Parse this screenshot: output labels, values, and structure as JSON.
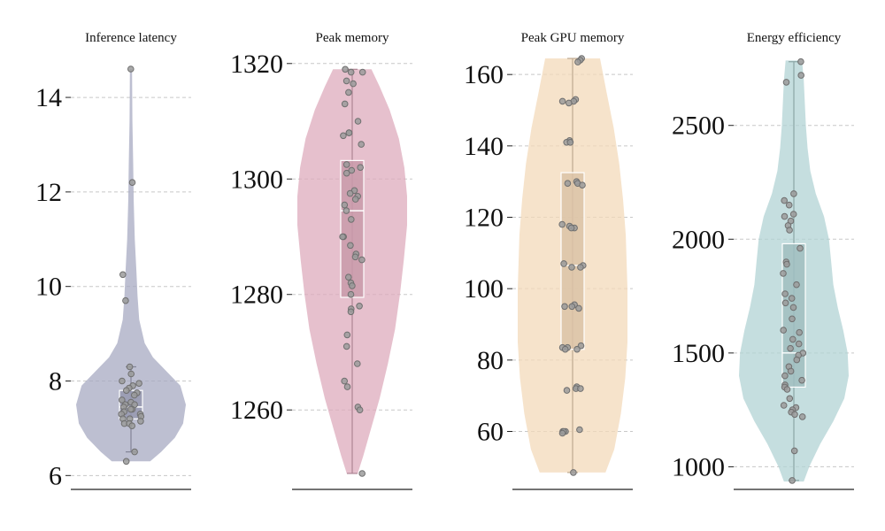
{
  "chart_data": [
    {
      "type": "violin",
      "title": "Inference latency",
      "ylim": [
        5.8,
        14.9
      ],
      "yticks": [
        6,
        8,
        10,
        12,
        14
      ],
      "color": "#a7a9c2",
      "box": {
        "min": 6.5,
        "q1": 7.2,
        "median": 7.45,
        "q3": 7.8,
        "max": 8.3
      },
      "violin_range": [
        6.3,
        14.6
      ],
      "density": [
        [
          6.3,
          0.35
        ],
        [
          6.5,
          0.55
        ],
        [
          6.8,
          0.8
        ],
        [
          7.1,
          0.95
        ],
        [
          7.5,
          1.0
        ],
        [
          7.9,
          0.9
        ],
        [
          8.2,
          0.65
        ],
        [
          8.5,
          0.4
        ],
        [
          8.8,
          0.25
        ],
        [
          9.3,
          0.15
        ],
        [
          9.8,
          0.12
        ],
        [
          10.3,
          0.1
        ],
        [
          11.0,
          0.07
        ],
        [
          11.8,
          0.05
        ],
        [
          12.6,
          0.04
        ],
        [
          13.5,
          0.025
        ],
        [
          14.6,
          0.02
        ]
      ],
      "points": [
        14.6,
        12.2,
        10.25,
        9.7,
        8.3,
        8.15,
        8.0,
        7.95,
        7.9,
        7.85,
        7.8,
        7.75,
        7.7,
        7.6,
        7.55,
        7.5,
        7.5,
        7.45,
        7.4,
        7.4,
        7.35,
        7.3,
        7.3,
        7.25,
        7.2,
        7.2,
        7.15,
        7.1,
        7.1,
        7.05,
        6.5,
        6.3
      ]
    },
    {
      "type": "violin",
      "title": "Peak memory",
      "ylim": [
        1247,
        1321.5
      ],
      "yticks": [
        1260,
        1280,
        1300,
        1320
      ],
      "color": "#deabbc",
      "box": {
        "min": 1249,
        "q1": 1279.5,
        "median": 1294.5,
        "q3": 1303.2,
        "max": 1319
      },
      "violin_range": [
        1249,
        1319
      ],
      "density": [
        [
          1249,
          0.1
        ],
        [
          1252,
          0.2
        ],
        [
          1257,
          0.35
        ],
        [
          1262,
          0.5
        ],
        [
          1268,
          0.65
        ],
        [
          1274,
          0.78
        ],
        [
          1280,
          0.87
        ],
        [
          1286,
          0.94
        ],
        [
          1292,
          1.0
        ],
        [
          1297,
          1.0
        ],
        [
          1302,
          0.95
        ],
        [
          1307,
          0.85
        ],
        [
          1312,
          0.68
        ],
        [
          1316,
          0.5
        ],
        [
          1319,
          0.35
        ]
      ],
      "points": [
        1319,
        1318.5,
        1318.5,
        1317,
        1316.5,
        1315,
        1313,
        1310,
        1308,
        1308,
        1307.5,
        1306,
        1302.5,
        1302,
        1301.5,
        1301,
        1298,
        1297.5,
        1297,
        1296.5,
        1295.5,
        1294.5,
        1293,
        1290,
        1290,
        1288.5,
        1287,
        1286.5,
        1286,
        1283,
        1282,
        1281.5,
        1280,
        1278,
        1277.5,
        1277,
        1273,
        1271,
        1268,
        1265,
        1264,
        1260.5,
        1260,
        1249
      ]
    },
    {
      "type": "violin",
      "title": "Peak GPU memory",
      "ylim": [
        45,
        165.5
      ],
      "yticks": [
        60,
        80,
        100,
        120,
        140,
        160
      ],
      "color": "#f3d9b9",
      "box": {
        "min": 48.5,
        "q1": 83,
        "median": 106.5,
        "q3": 132.5,
        "max": 164.5
      },
      "violin_range": [
        48.5,
        164.5
      ],
      "density": [
        [
          48.5,
          0.6
        ],
        [
          55,
          0.76
        ],
        [
          65,
          0.88
        ],
        [
          75,
          0.96
        ],
        [
          85,
          1.0
        ],
        [
          100,
          1.0
        ],
        [
          115,
          0.97
        ],
        [
          125,
          0.92
        ],
        [
          135,
          0.85
        ],
        [
          145,
          0.75
        ],
        [
          155,
          0.62
        ],
        [
          164.5,
          0.5
        ]
      ],
      "points": [
        164.5,
        164,
        163.5,
        153,
        152.5,
        152.5,
        152,
        141.5,
        141,
        141,
        130,
        129.5,
        129.5,
        129,
        118,
        117.5,
        117,
        117,
        107,
        106.5,
        106,
        106,
        95.5,
        95,
        95,
        94.5,
        84,
        83.5,
        83.5,
        83,
        83,
        72.5,
        72,
        72,
        71.5,
        60.5,
        60,
        60,
        60,
        59.5,
        48.5
      ]
    },
    {
      "type": "violin",
      "title": "Energy efficiency",
      "ylim": [
        920,
        2810
      ],
      "yticks": [
        1000,
        1500,
        2000,
        2500
      ],
      "color": "#b2d3d4",
      "box": {
        "min": 940,
        "q1": 1350,
        "median": 1500,
        "q3": 1980,
        "max": 2780
      },
      "violin_range": [
        935,
        2785
      ],
      "density": [
        [
          935,
          0.18
        ],
        [
          1000,
          0.28
        ],
        [
          1100,
          0.48
        ],
        [
          1200,
          0.72
        ],
        [
          1300,
          0.92
        ],
        [
          1400,
          1.0
        ],
        [
          1500,
          0.98
        ],
        [
          1600,
          0.9
        ],
        [
          1700,
          0.8
        ],
        [
          1800,
          0.72
        ],
        [
          1900,
          0.68
        ],
        [
          2000,
          0.64
        ],
        [
          2100,
          0.55
        ],
        [
          2200,
          0.4
        ],
        [
          2300,
          0.3
        ],
        [
          2400,
          0.25
        ],
        [
          2500,
          0.22
        ],
        [
          2600,
          0.2
        ],
        [
          2700,
          0.18
        ],
        [
          2785,
          0.15
        ]
      ],
      "points": [
        2780,
        2720,
        2690,
        2200,
        2170,
        2150,
        2110,
        2100,
        2080,
        2060,
        2040,
        1960,
        1900,
        1890,
        1850,
        1800,
        1760,
        1740,
        1720,
        1700,
        1650,
        1600,
        1590,
        1560,
        1540,
        1520,
        1500,
        1490,
        1470,
        1440,
        1420,
        1400,
        1380,
        1360,
        1350,
        1340,
        1300,
        1270,
        1260,
        1250,
        1240,
        1230,
        1220,
        1070,
        940
      ]
    }
  ]
}
